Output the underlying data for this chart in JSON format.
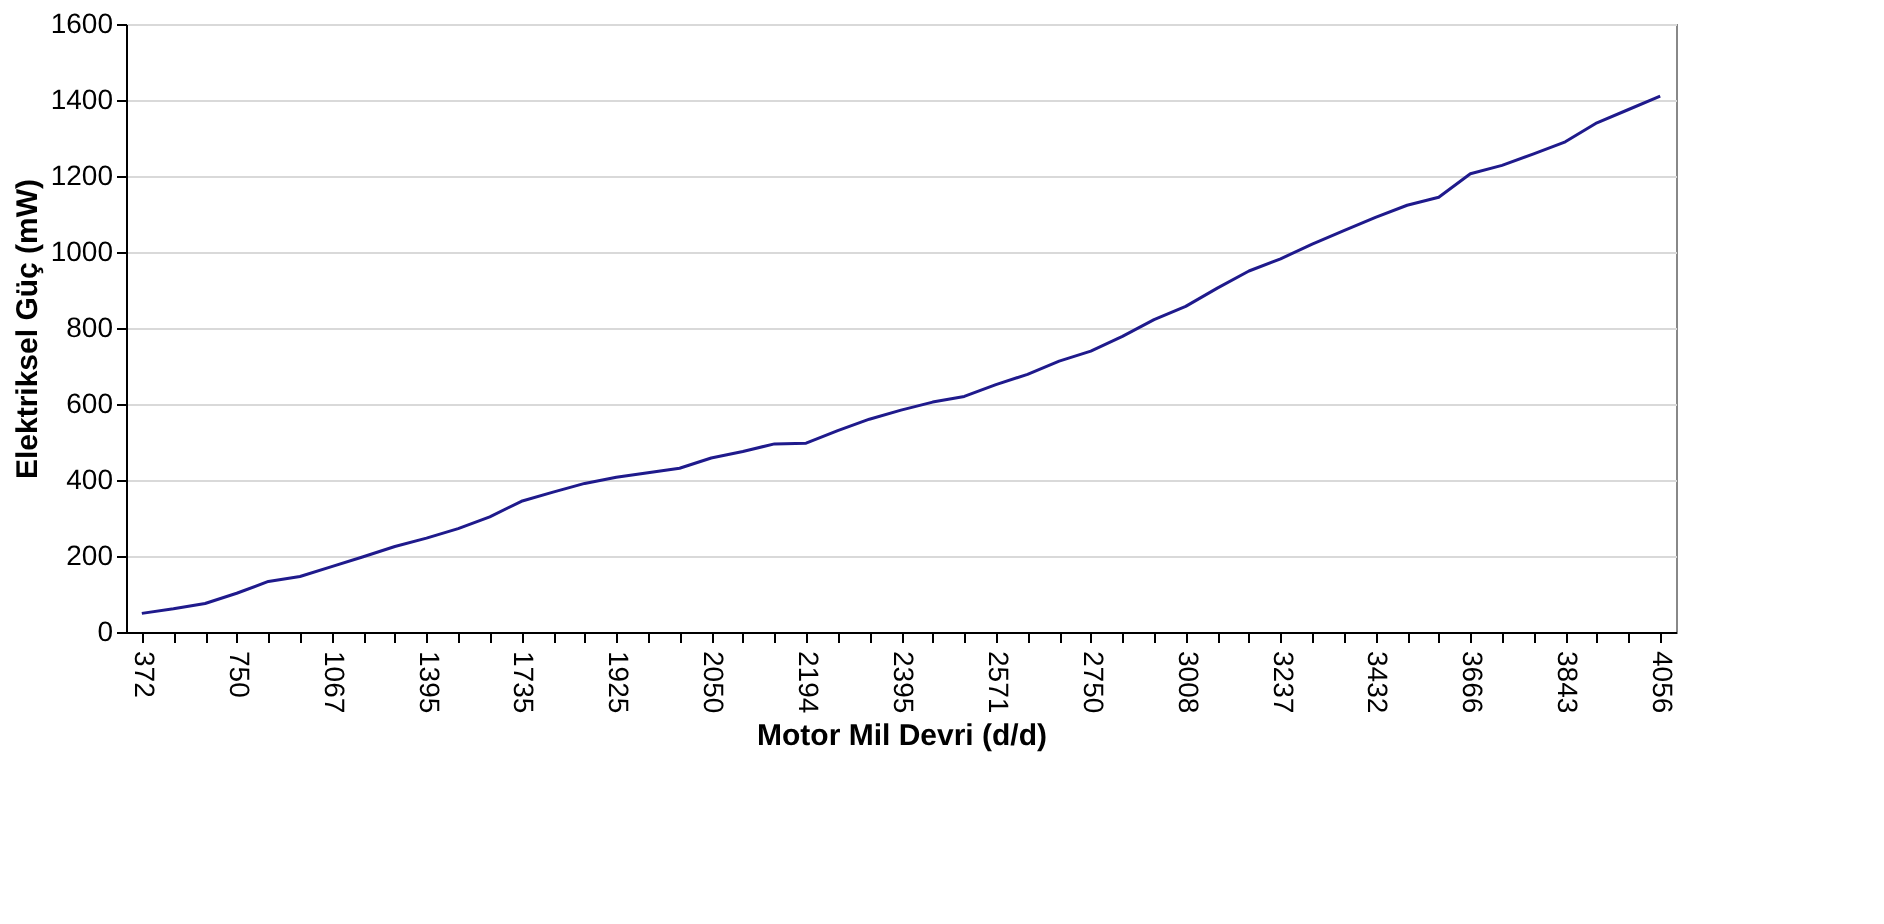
{
  "chart_data": {
    "type": "line",
    "xlabel": "Motor Mil Devri (d/d)",
    "ylabel": "Elektriksel Güç (mW)",
    "categories": [
      "372",
      null,
      null,
      "750",
      null,
      null,
      "1067",
      null,
      null,
      "1395",
      null,
      null,
      "1735",
      null,
      null,
      "1925",
      null,
      null,
      "2050",
      null,
      null,
      "2194",
      null,
      null,
      "2395",
      null,
      null,
      "2571",
      null,
      null,
      "2750",
      null,
      null,
      "3008",
      null,
      null,
      "3237",
      null,
      null,
      "3432",
      null,
      null,
      "3666",
      null,
      null,
      "3843",
      null,
      null,
      "4056"
    ],
    "series": [
      {
        "color": "#1f1a8c",
        "values": [
          49,
          61,
          75,
          102,
          133,
          146,
          172,
          198,
          225,
          247,
          272,
          303,
          344,
          368,
          391,
          407,
          419,
          431,
          458,
          475,
          495,
          497,
          530,
          560,
          584,
          605,
          620,
          651,
          678,
          713,
          739,
          778,
          822,
          857,
          905,
          950,
          982,
          1021,
          1056,
          1091,
          1123,
          1144,
          1206,
          1228,
          1258,
          1290,
          1340,
          1375,
          1410
        ]
      }
    ],
    "ylim": [
      0,
      1600
    ],
    "yticks": [
      0,
      200,
      400,
      600,
      800,
      1000,
      1200,
      1400,
      1600
    ],
    "grid": "y",
    "marker": "none",
    "line_style": "solid"
  }
}
